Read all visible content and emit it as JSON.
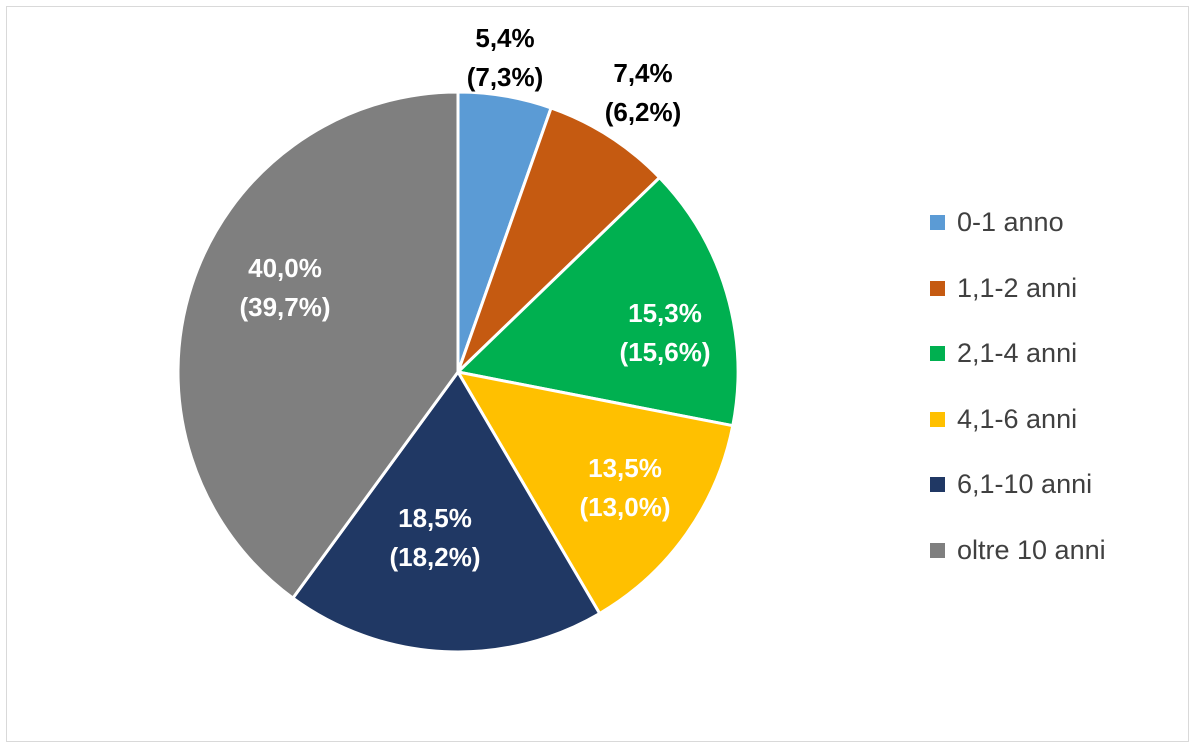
{
  "chart_data": {
    "type": "pie",
    "title": "",
    "start": "top",
    "direction": "clockwise",
    "legend_position": "right",
    "slices": [
      {
        "name": "0-1 anno",
        "value": 5.4,
        "label": "5,4%",
        "secondary_label": "(7,3%)",
        "color": "#5b9bd5",
        "label_color": "#000000"
      },
      {
        "name": "1,1-2 anni",
        "value": 7.4,
        "label": "7,4%",
        "secondary_label": "(6,2%)",
        "color": "#c55a11",
        "label_color": "#000000"
      },
      {
        "name": "2,1-4 anni",
        "value": 15.3,
        "label": "15,3%",
        "secondary_label": "(15,6%)",
        "color": "#00b050",
        "label_color": "#ffffff"
      },
      {
        "name": "4,1-6 anni",
        "value": 13.5,
        "label": "13,5%",
        "secondary_label": "(13,0%)",
        "color": "#ffc000",
        "label_color": "#ffffff"
      },
      {
        "name": "6,1-10 anni",
        "value": 18.5,
        "label": "18,5%",
        "secondary_label": "(18,2%)",
        "color": "#203864",
        "label_color": "#ffffff"
      },
      {
        "name": "oltre 10 anni",
        "value": 40.0,
        "label": "40,0%",
        "secondary_label": "(39,7%)",
        "color": "#7f7f7f",
        "label_color": "#ffffff"
      }
    ]
  }
}
